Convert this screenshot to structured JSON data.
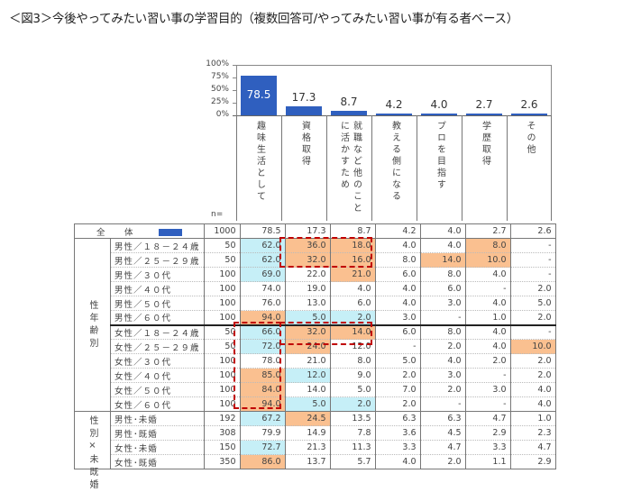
{
  "title": "＜図3＞今後やってみたい習い事の学習目的（複数回答可/やってみたい習い事が有る者ベース）",
  "chart_data": {
    "type": "bar",
    "title": "今後やってみたい習い事の学習目的",
    "categories": [
      "趣味生活として",
      "資格取得",
      "就職など他のことに活かすため",
      "教える側になる",
      "プロを目指す",
      "学歴取得",
      "その他"
    ],
    "values": [
      78.5,
      17.3,
      8.7,
      4.2,
      4.0,
      2.7,
      2.6
    ],
    "ylim": [
      0,
      100
    ],
    "yticks": [
      "100%",
      "75%",
      "50%",
      "25%",
      "0%"
    ],
    "bar_color": "#2f5fbf",
    "xlabel": "",
    "ylabel": ""
  },
  "header": {
    "n_label": "n=",
    "columns": [
      "趣味生活として",
      "資格取得",
      "就職など他のことに活かすため",
      "教える側になる",
      "プロを目指す",
      "学歴取得",
      "その他"
    ]
  },
  "table": {
    "total": {
      "label": "全　体",
      "n": "1000",
      "values": [
        "78.5",
        "17.3",
        "8.7",
        "4.2",
        "4.0",
        "2.7",
        "2.6"
      ]
    },
    "groups": [
      {
        "label": "性年齢別",
        "rows": [
          {
            "label": "男性／１８－２４歳",
            "n": "50",
            "values": [
              "62.0",
              "36.0",
              "18.0",
              "4.0",
              "4.0",
              "8.0",
              "-"
            ],
            "hl": [
              "lo",
              "hi",
              "hi",
              "",
              "",
              "hi",
              ""
            ]
          },
          {
            "label": "男性／２５－２９歳",
            "n": "50",
            "values": [
              "62.0",
              "32.0",
              "16.0",
              "8.0",
              "14.0",
              "10.0",
              "-"
            ],
            "hl": [
              "lo",
              "hi",
              "hi",
              "",
              "hi",
              "hi",
              ""
            ]
          },
          {
            "label": "男性／３０代",
            "n": "100",
            "values": [
              "69.0",
              "22.0",
              "21.0",
              "6.0",
              "8.0",
              "4.0",
              "-"
            ],
            "hl": [
              "lo",
              "",
              "hi",
              "",
              "",
              "",
              ""
            ]
          },
          {
            "label": "男性／４０代",
            "n": "100",
            "values": [
              "74.0",
              "19.0",
              "4.0",
              "4.0",
              "6.0",
              "-",
              "2.0"
            ],
            "hl": [
              "",
              "",
              "",
              "",
              "",
              "",
              ""
            ]
          },
          {
            "label": "男性／５０代",
            "n": "100",
            "values": [
              "76.0",
              "13.0",
              "6.0",
              "4.0",
              "3.0",
              "4.0",
              "5.0"
            ],
            "hl": [
              "",
              "",
              "",
              "",
              "",
              "",
              ""
            ]
          },
          {
            "label": "男性／６０代",
            "n": "100",
            "values": [
              "94.0",
              "5.0",
              "2.0",
              "3.0",
              "-",
              "1.0",
              "2.0"
            ],
            "hl": [
              "hi",
              "lo",
              "lo",
              "",
              "",
              "",
              ""
            ]
          },
          {
            "label": "女性／１８－２４歳",
            "n": "50",
            "values": [
              "66.0",
              "32.0",
              "14.0",
              "6.0",
              "8.0",
              "4.0",
              "-"
            ],
            "hl": [
              "lo",
              "hi",
              "hi",
              "",
              "",
              "",
              ""
            ]
          },
          {
            "label": "女性／２５－２９歳",
            "n": "50",
            "values": [
              "72.0",
              "24.0",
              "12.0",
              "-",
              "2.0",
              "4.0",
              "10.0"
            ],
            "hl": [
              "lo",
              "hi",
              "",
              "",
              "",
              "",
              "hi"
            ]
          },
          {
            "label": "女性／３０代",
            "n": "100",
            "values": [
              "78.0",
              "21.0",
              "8.0",
              "5.0",
              "4.0",
              "2.0",
              "2.0"
            ],
            "hl": [
              "",
              "",
              "",
              "",
              "",
              "",
              ""
            ]
          },
          {
            "label": "女性／４０代",
            "n": "100",
            "values": [
              "85.0",
              "12.0",
              "9.0",
              "2.0",
              "3.0",
              "-",
              "2.0"
            ],
            "hl": [
              "hi",
              "lo",
              "",
              "",
              "",
              "",
              ""
            ]
          },
          {
            "label": "女性／５０代",
            "n": "100",
            "values": [
              "84.0",
              "14.0",
              "5.0",
              "7.0",
              "2.0",
              "3.0",
              "4.0"
            ],
            "hl": [
              "hi",
              "",
              "",
              "",
              "",
              "",
              ""
            ]
          },
          {
            "label": "女性／６０代",
            "n": "100",
            "values": [
              "94.0",
              "5.0",
              "2.0",
              "2.0",
              "-",
              "-",
              "4.0"
            ],
            "hl": [
              "hi",
              "lo",
              "lo",
              "",
              "",
              "",
              ""
            ]
          }
        ]
      },
      {
        "label": "性別×未既婚",
        "rows": [
          {
            "label": "男性･未婚",
            "n": "192",
            "values": [
              "67.2",
              "24.5",
              "13.5",
              "6.3",
              "6.3",
              "4.7",
              "1.0"
            ],
            "hl": [
              "lo",
              "hi",
              "",
              "",
              "",
              "",
              ""
            ]
          },
          {
            "label": "男性･既婚",
            "n": "308",
            "values": [
              "79.9",
              "14.9",
              "7.8",
              "3.6",
              "4.5",
              "2.9",
              "2.3"
            ],
            "hl": [
              "",
              "",
              "",
              "",
              "",
              "",
              ""
            ]
          },
          {
            "label": "女性･未婚",
            "n": "150",
            "values": [
              "72.7",
              "21.3",
              "11.3",
              "3.3",
              "4.7",
              "3.3",
              "4.7"
            ],
            "hl": [
              "lo",
              "",
              "",
              "",
              "",
              "",
              ""
            ]
          },
          {
            "label": "女性･既婚",
            "n": "350",
            "values": [
              "86.0",
              "13.7",
              "5.7",
              "4.0",
              "2.0",
              "1.1",
              "2.9"
            ],
            "hl": [
              "hi",
              "",
              "",
              "",
              "",
              "",
              ""
            ]
          }
        ]
      }
    ]
  },
  "colors": {
    "high": "#fac090",
    "low": "#c6eff7",
    "bar": "#2f5fbf",
    "dash": "#c00000"
  }
}
